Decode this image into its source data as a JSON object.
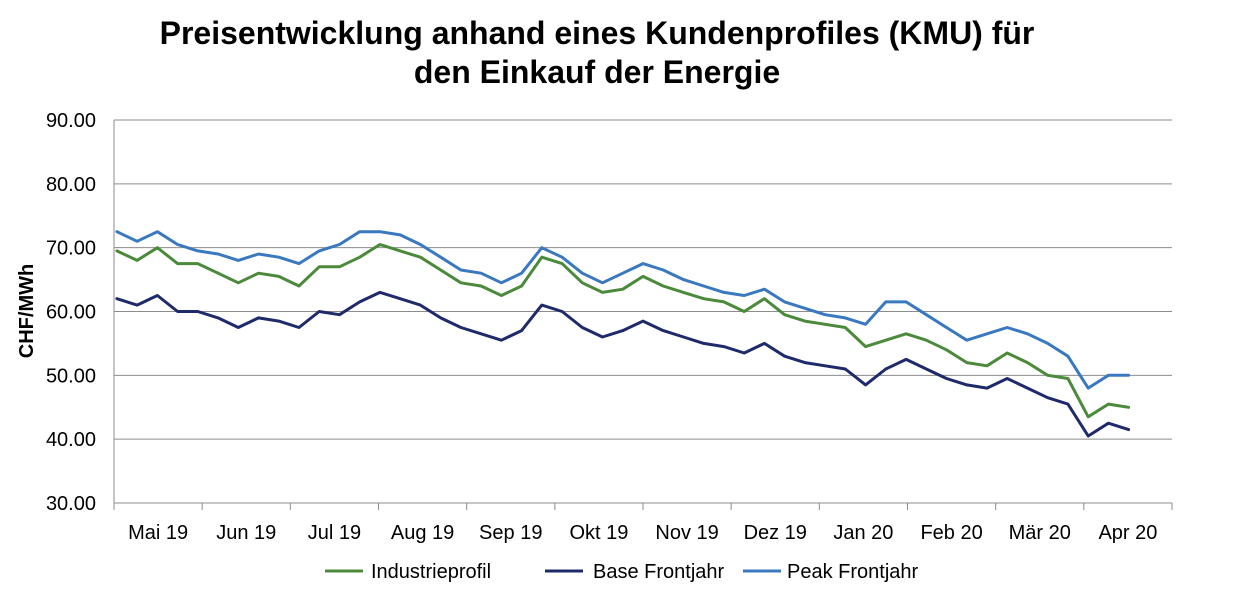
{
  "chart_data": {
    "type": "line",
    "title_lines": [
      "Preisentwicklung anhand eines Kundenprofiles (KMU) für",
      "den Einkauf der Energie"
    ],
    "xlabel": "",
    "ylabel": "CHF/MWh",
    "ylim": [
      30,
      90
    ],
    "yticks": [
      30,
      40,
      50,
      60,
      70,
      80,
      90
    ],
    "ytick_labels": [
      "30.00",
      "40.00",
      "50.00",
      "60.00",
      "70.00",
      "80.00",
      "90.00"
    ],
    "xlim": [
      "2019-04-14",
      "2020-04-14"
    ],
    "xtick_labels": [
      "Mai 19",
      "Jun 19",
      "Jul 19",
      "Aug 19",
      "Sep 19",
      "Okt 19",
      "Nov 19",
      "Dez 19",
      "Jan 20",
      "Feb 20",
      "Mär 20",
      "Apr 20"
    ],
    "grid": "horizontal",
    "legend_position": "bottom",
    "colors": {
      "Industrieprofil": "#4a8a3a",
      "Base Frontjahr": "#1f2a6b",
      "Peak Frontjahr": "#3a78bf"
    },
    "x": [
      "2019-04-15",
      "2019-04-22",
      "2019-04-29",
      "2019-05-06",
      "2019-05-13",
      "2019-05-20",
      "2019-05-27",
      "2019-06-03",
      "2019-06-10",
      "2019-06-17",
      "2019-06-24",
      "2019-07-01",
      "2019-07-08",
      "2019-07-15",
      "2019-07-22",
      "2019-07-29",
      "2019-08-05",
      "2019-08-12",
      "2019-08-19",
      "2019-08-26",
      "2019-09-02",
      "2019-09-09",
      "2019-09-16",
      "2019-09-23",
      "2019-09-30",
      "2019-10-07",
      "2019-10-14",
      "2019-10-21",
      "2019-10-28",
      "2019-11-04",
      "2019-11-11",
      "2019-11-18",
      "2019-11-25",
      "2019-12-02",
      "2019-12-09",
      "2019-12-16",
      "2019-12-23",
      "2019-12-30",
      "2020-01-06",
      "2020-01-13",
      "2020-01-20",
      "2020-01-27",
      "2020-02-03",
      "2020-02-10",
      "2020-02-17",
      "2020-02-24",
      "2020-03-02",
      "2020-03-09",
      "2020-03-16",
      "2020-03-23",
      "2020-03-30"
    ],
    "series": [
      {
        "name": "Industrieprofil",
        "values": [
          69.5,
          68.0,
          70.0,
          67.5,
          67.5,
          66.0,
          64.5,
          66.0,
          65.5,
          64.0,
          67.0,
          67.0,
          68.5,
          70.5,
          69.5,
          68.5,
          66.5,
          64.5,
          64.0,
          62.5,
          64.0,
          68.5,
          67.5,
          64.5,
          63.0,
          63.5,
          65.5,
          64.0,
          63.0,
          62.0,
          61.5,
          60.0,
          62.0,
          59.5,
          58.5,
          58.0,
          57.5,
          54.5,
          55.5,
          56.5,
          55.5,
          54.0,
          52.0,
          51.5,
          53.5,
          52.0,
          50.0,
          49.5,
          43.5,
          45.5,
          45.0
        ]
      },
      {
        "name": "Base Frontjahr",
        "values": [
          62.0,
          61.0,
          62.5,
          60.0,
          60.0,
          59.0,
          57.5,
          59.0,
          58.5,
          57.5,
          60.0,
          59.5,
          61.5,
          63.0,
          62.0,
          61.0,
          59.0,
          57.5,
          56.5,
          55.5,
          57.0,
          61.0,
          60.0,
          57.5,
          56.0,
          57.0,
          58.5,
          57.0,
          56.0,
          55.0,
          54.5,
          53.5,
          55.0,
          53.0,
          52.0,
          51.5,
          51.0,
          48.5,
          51.0,
          52.5,
          51.0,
          49.5,
          48.5,
          48.0,
          49.5,
          48.0,
          46.5,
          45.5,
          40.5,
          42.5,
          41.5
        ]
      },
      {
        "name": "Peak Frontjahr",
        "values": [
          72.5,
          71.0,
          72.5,
          70.5,
          69.5,
          69.0,
          68.0,
          69.0,
          68.5,
          67.5,
          69.5,
          70.5,
          72.5,
          72.5,
          72.0,
          70.5,
          68.5,
          66.5,
          66.0,
          64.5,
          66.0,
          70.0,
          68.5,
          66.0,
          64.5,
          66.0,
          67.5,
          66.5,
          65.0,
          64.0,
          63.0,
          62.5,
          63.5,
          61.5,
          60.5,
          59.5,
          59.0,
          58.0,
          61.5,
          61.5,
          59.5,
          57.5,
          55.5,
          56.5,
          57.5,
          56.5,
          55.0,
          53.0,
          48.0,
          50.0,
          50.0
        ]
      }
    ]
  }
}
